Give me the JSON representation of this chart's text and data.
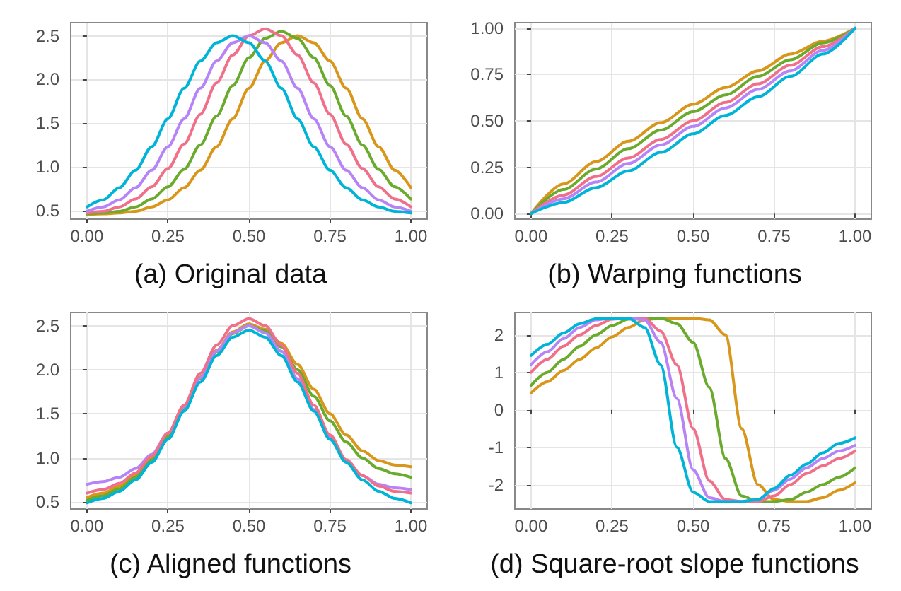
{
  "chart_data": [
    {
      "type": "line",
      "title": "(a) Original data",
      "grid": true,
      "xlim": [
        -0.05,
        1.05
      ],
      "ylim": [
        0.4,
        2.65
      ],
      "xticks": [
        {
          "value": 0,
          "label": "0.00"
        },
        {
          "value": 0.25,
          "label": "0.25"
        },
        {
          "value": 0.5,
          "label": "0.50"
        },
        {
          "value": 0.75,
          "label": "0.75"
        },
        {
          "value": 1,
          "label": "1.00"
        }
      ],
      "yticks": [
        {
          "value": 0.5,
          "label": "0.5"
        },
        {
          "value": 1,
          "label": "1.0"
        },
        {
          "value": 1.5,
          "label": "1.5"
        },
        {
          "value": 2,
          "label": "2.0"
        },
        {
          "value": 2.5,
          "label": "2.5"
        }
      ],
      "x": [
        0,
        0.05,
        0.1,
        0.15,
        0.2,
        0.25,
        0.3,
        0.35,
        0.4,
        0.45,
        0.5,
        0.55,
        0.6,
        0.65,
        0.7,
        0.75,
        0.8,
        0.85,
        0.9,
        0.95,
        1
      ],
      "series": [
        {
          "color": "#d8961a",
          "values": [
            0.45,
            0.46,
            0.47,
            0.49,
            0.54,
            0.62,
            0.76,
            0.96,
            1.23,
            1.55,
            1.9,
            2.21,
            2.42,
            2.5,
            2.42,
            2.21,
            1.9,
            1.55,
            1.23,
            0.96,
            0.76
          ]
        },
        {
          "color": "#6aab2e",
          "values": [
            0.46,
            0.47,
            0.49,
            0.54,
            0.63,
            0.77,
            0.97,
            1.25,
            1.58,
            1.93,
            2.25,
            2.47,
            2.55,
            2.47,
            2.25,
            1.93,
            1.58,
            1.25,
            0.97,
            0.77,
            0.63
          ]
        },
        {
          "color": "#f0708a",
          "values": [
            0.47,
            0.49,
            0.54,
            0.63,
            0.77,
            0.98,
            1.26,
            1.6,
            1.96,
            2.28,
            2.5,
            2.58,
            2.5,
            2.28,
            1.96,
            1.6,
            1.26,
            0.98,
            0.77,
            0.63,
            0.54
          ]
        },
        {
          "color": "#b784f7",
          "values": [
            0.49,
            0.54,
            0.62,
            0.76,
            0.96,
            1.23,
            1.55,
            1.9,
            2.21,
            2.42,
            2.5,
            2.42,
            2.21,
            1.9,
            1.55,
            1.23,
            0.96,
            0.76,
            0.62,
            0.54,
            0.49
          ]
        },
        {
          "color": "#00b4d8",
          "values": [
            0.54,
            0.62,
            0.76,
            0.96,
            1.23,
            1.55,
            1.9,
            2.21,
            2.42,
            2.5,
            2.42,
            2.21,
            1.9,
            1.55,
            1.23,
            0.96,
            0.76,
            0.62,
            0.54,
            0.49,
            0.47
          ]
        }
      ]
    },
    {
      "type": "line",
      "title": "(b) Warping functions",
      "grid": true,
      "xlim": [
        -0.05,
        1.05
      ],
      "ylim": [
        -0.03,
        1.03
      ],
      "xticks": [
        {
          "value": 0,
          "label": "0.00"
        },
        {
          "value": 0.25,
          "label": "0.25"
        },
        {
          "value": 0.5,
          "label": "0.50"
        },
        {
          "value": 0.75,
          "label": "0.75"
        },
        {
          "value": 1,
          "label": "1.00"
        }
      ],
      "yticks": [
        {
          "value": 0,
          "label": "0.00"
        },
        {
          "value": 0.25,
          "label": "0.25"
        },
        {
          "value": 0.5,
          "label": "0.50"
        },
        {
          "value": 0.75,
          "label": "0.75"
        },
        {
          "value": 1,
          "label": "1.00"
        }
      ],
      "x": [
        0,
        0.1,
        0.2,
        0.3,
        0.4,
        0.5,
        0.6,
        0.7,
        0.8,
        0.9,
        1
      ],
      "series": [
        {
          "color": "#d8961a",
          "values": [
            0,
            0.16,
            0.28,
            0.39,
            0.49,
            0.59,
            0.68,
            0.77,
            0.86,
            0.93,
            1
          ]
        },
        {
          "color": "#6aab2e",
          "values": [
            0,
            0.13,
            0.24,
            0.35,
            0.45,
            0.55,
            0.64,
            0.74,
            0.83,
            0.92,
            1
          ]
        },
        {
          "color": "#f0708a",
          "values": [
            0,
            0.1,
            0.2,
            0.3,
            0.4,
            0.5,
            0.6,
            0.7,
            0.8,
            0.9,
            1
          ]
        },
        {
          "color": "#b784f7",
          "values": [
            0,
            0.08,
            0.17,
            0.27,
            0.37,
            0.47,
            0.57,
            0.67,
            0.77,
            0.88,
            1
          ]
        },
        {
          "color": "#00b4d8",
          "values": [
            0,
            0.06,
            0.14,
            0.23,
            0.33,
            0.43,
            0.53,
            0.63,
            0.74,
            0.86,
            1
          ]
        }
      ]
    },
    {
      "type": "line",
      "title": "(c) Aligned functions",
      "grid": true,
      "xlim": [
        -0.05,
        1.05
      ],
      "ylim": [
        0.42,
        2.65
      ],
      "xticks": [
        {
          "value": 0,
          "label": "0.00"
        },
        {
          "value": 0.25,
          "label": "0.25"
        },
        {
          "value": 0.5,
          "label": "0.50"
        },
        {
          "value": 0.75,
          "label": "0.75"
        },
        {
          "value": 1,
          "label": "1.00"
        }
      ],
      "yticks": [
        {
          "value": 0.5,
          "label": "0.5"
        },
        {
          "value": 1,
          "label": "1.0"
        },
        {
          "value": 1.5,
          "label": "1.5"
        },
        {
          "value": 2,
          "label": "2.0"
        },
        {
          "value": 2.5,
          "label": "2.5"
        }
      ],
      "x": [
        0,
        0.05,
        0.1,
        0.15,
        0.2,
        0.25,
        0.3,
        0.35,
        0.4,
        0.45,
        0.5,
        0.55,
        0.6,
        0.65,
        0.7,
        0.75,
        0.8,
        0.85,
        0.9,
        0.95,
        1
      ],
      "series": [
        {
          "color": "#d8961a",
          "values": [
            0.55,
            0.6,
            0.68,
            0.8,
            1.0,
            1.26,
            1.58,
            1.92,
            2.22,
            2.43,
            2.52,
            2.46,
            2.3,
            2.06,
            1.78,
            1.5,
            1.26,
            1.08,
            0.97,
            0.92,
            0.9
          ]
        },
        {
          "color": "#6aab2e",
          "values": [
            0.52,
            0.57,
            0.65,
            0.78,
            0.98,
            1.24,
            1.56,
            1.9,
            2.2,
            2.41,
            2.5,
            2.44,
            2.26,
            2.0,
            1.7,
            1.42,
            1.18,
            1.0,
            0.88,
            0.82,
            0.78
          ]
        },
        {
          "color": "#b784f7",
          "values": [
            0.7,
            0.73,
            0.78,
            0.88,
            1.04,
            1.28,
            1.58,
            1.91,
            2.21,
            2.42,
            2.5,
            2.42,
            2.21,
            1.9,
            1.55,
            1.23,
            0.96,
            0.8,
            0.7,
            0.66,
            0.64
          ]
        },
        {
          "color": "#f0708a",
          "values": [
            0.6,
            0.64,
            0.71,
            0.83,
            1.02,
            1.28,
            1.6,
            1.96,
            2.28,
            2.5,
            2.58,
            2.5,
            2.28,
            1.96,
            1.6,
            1.26,
            0.98,
            0.8,
            0.68,
            0.62,
            0.6
          ]
        },
        {
          "color": "#00b4d8",
          "values": [
            0.49,
            0.54,
            0.62,
            0.75,
            0.95,
            1.21,
            1.53,
            1.86,
            2.16,
            2.37,
            2.45,
            2.37,
            2.16,
            1.86,
            1.53,
            1.21,
            0.95,
            0.75,
            0.62,
            0.54,
            0.49
          ]
        }
      ]
    },
    {
      "type": "line",
      "title": "(d) Square-root slope functions",
      "grid": true,
      "xlim": [
        -0.05,
        1.05
      ],
      "ylim": [
        -2.65,
        2.6
      ],
      "xticks": [
        {
          "value": 0,
          "label": "0.00"
        },
        {
          "value": 0.25,
          "label": "0.25"
        },
        {
          "value": 0.5,
          "label": "0.50"
        },
        {
          "value": 0.75,
          "label": "0.75"
        },
        {
          "value": 1,
          "label": "1.00"
        }
      ],
      "yticks": [
        -2,
        -1,
        0,
        1,
        2
      ],
      "x": [
        0,
        0.05,
        0.1,
        0.15,
        0.2,
        0.25,
        0.3,
        0.35,
        0.4,
        0.45,
        0.5,
        0.55,
        0.6,
        0.65,
        0.7,
        0.75,
        0.8,
        0.85,
        0.9,
        0.95,
        1
      ],
      "series": [
        {
          "color": "#d8961a",
          "values": [
            0.45,
            0.75,
            1.05,
            1.35,
            1.65,
            1.95,
            2.2,
            2.4,
            2.45,
            2.45,
            2.45,
            2.4,
            2.0,
            -0.5,
            -2.0,
            -2.4,
            -2.45,
            -2.45,
            -2.35,
            -2.15,
            -1.95
          ]
        },
        {
          "color": "#6aab2e",
          "values": [
            0.65,
            1.0,
            1.35,
            1.7,
            2.0,
            2.25,
            2.42,
            2.45,
            2.45,
            2.3,
            1.8,
            0.6,
            -1.3,
            -2.3,
            -2.45,
            -2.45,
            -2.4,
            -2.2,
            -2.0,
            -1.8,
            -1.55
          ]
        },
        {
          "color": "#f0708a",
          "values": [
            1.0,
            1.35,
            1.7,
            2.0,
            2.25,
            2.42,
            2.45,
            2.45,
            2.1,
            1.2,
            -0.5,
            -1.9,
            -2.4,
            -2.45,
            -2.45,
            -2.3,
            -2.0,
            -1.7,
            -1.5,
            -1.3,
            -1.1
          ]
        },
        {
          "color": "#b784f7",
          "values": [
            1.2,
            1.55,
            1.9,
            2.2,
            2.4,
            2.45,
            2.45,
            2.4,
            1.8,
            0.3,
            -1.6,
            -2.35,
            -2.45,
            -2.45,
            -2.4,
            -2.15,
            -1.85,
            -1.55,
            -1.3,
            -1.1,
            -0.95
          ]
        },
        {
          "color": "#00b4d8",
          "values": [
            1.45,
            1.75,
            2.05,
            2.3,
            2.43,
            2.45,
            2.45,
            2.2,
            1.2,
            -1.0,
            -2.2,
            -2.45,
            -2.45,
            -2.45,
            -2.4,
            -2.1,
            -1.75,
            -1.45,
            -1.15,
            -0.9,
            -0.75
          ]
        }
      ]
    }
  ]
}
